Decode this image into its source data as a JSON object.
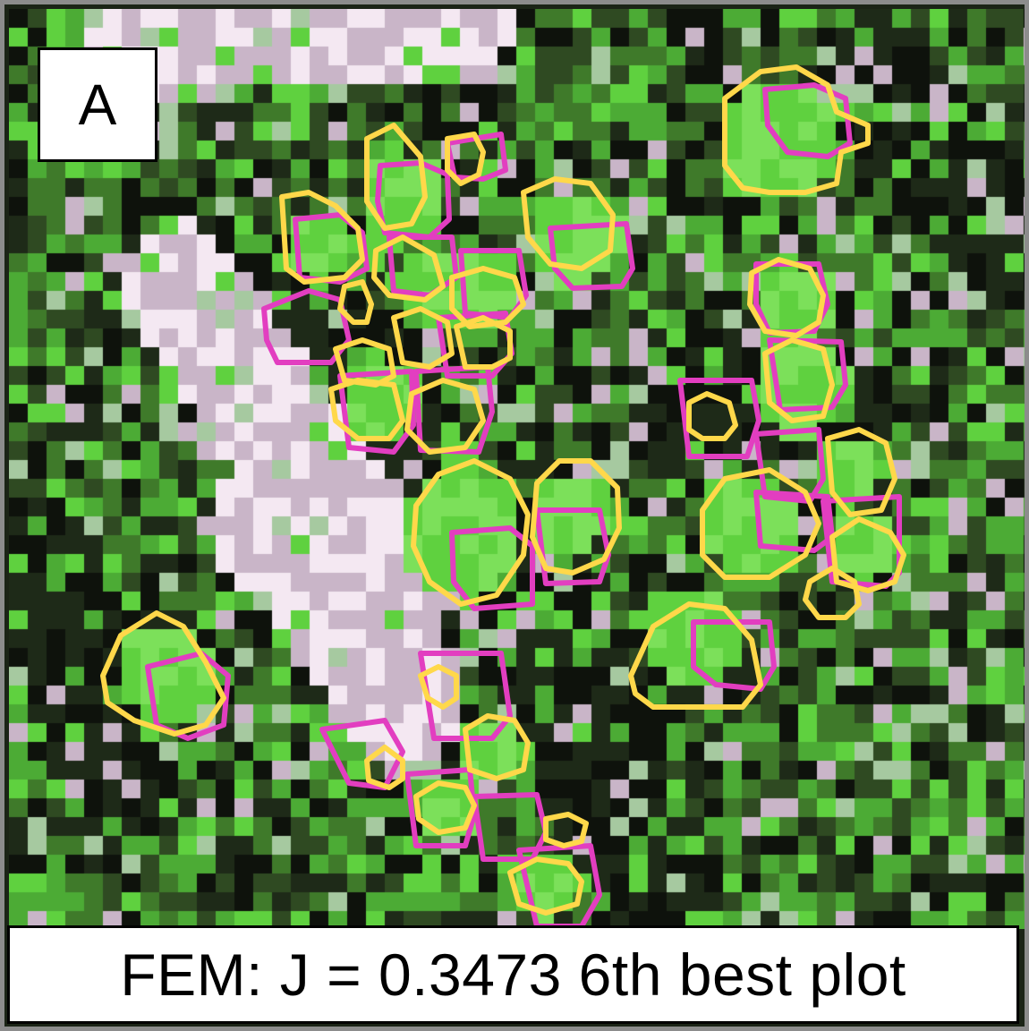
{
  "panel": {
    "label": "A",
    "caption": "FEM: J = 0.3473 6th best plot"
  },
  "legend_colors": {
    "reference_outline": "#e23ec0",
    "predicted_outline": "#ffd84a"
  },
  "scene": {
    "description_source": "pixelated false-color aerial imagery of forest canopy",
    "palette": [
      "#0e120c",
      "#1e2a18",
      "#2f4a22",
      "#3f7a2a",
      "#4cab35",
      "#5fd13f",
      "#7ce05a",
      "#a6c9a0",
      "#c9b5c8",
      "#f4e8f2"
    ]
  }
}
